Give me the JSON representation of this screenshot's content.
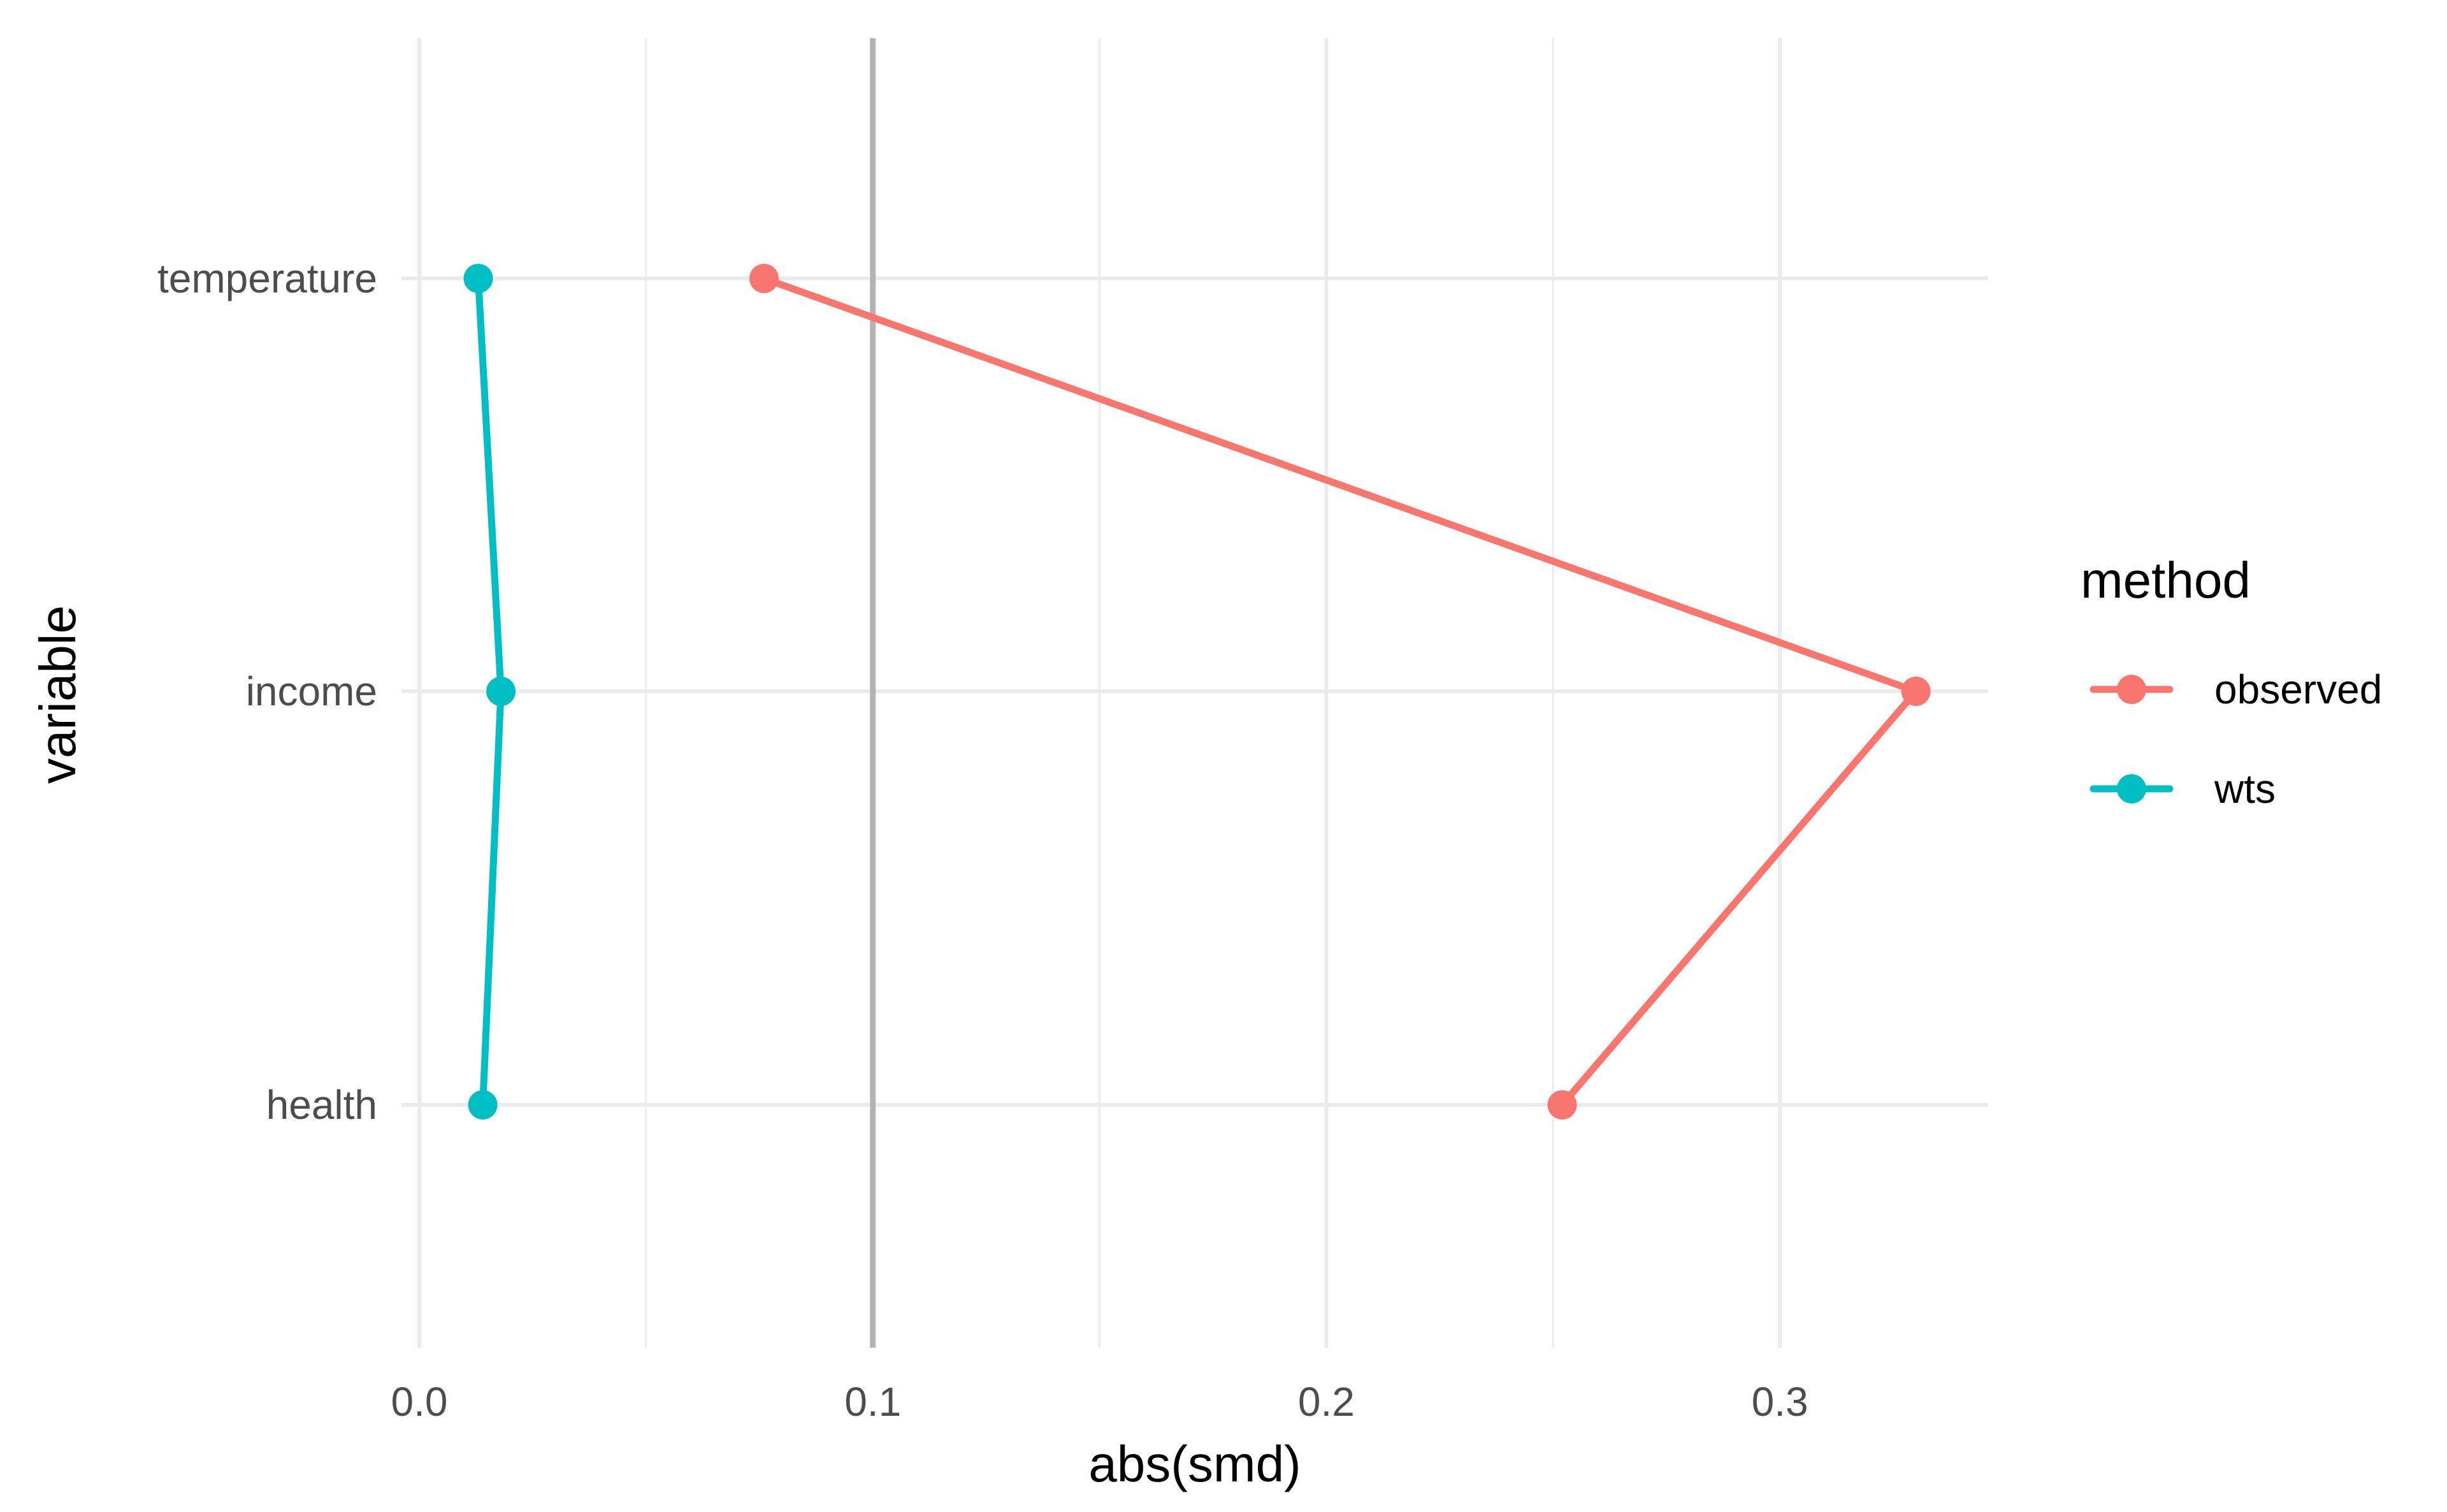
{
  "chart_data": {
    "type": "line",
    "xlabel": "abs(smd)",
    "ylabel": "variable",
    "xlim": [
      -0.0035,
      0.3455
    ],
    "x_ticks": [
      0.0,
      0.1,
      0.2,
      0.3
    ],
    "x_tick_labels": [
      "0.0",
      "0.1",
      "0.2",
      "0.3"
    ],
    "x_minor_ticks": [
      0.05,
      0.15,
      0.25
    ],
    "categories": [
      "temperature",
      "income",
      "health"
    ],
    "reference_line": {
      "x": 0.1,
      "color": "#b3b3b3"
    },
    "legend": {
      "title": "method",
      "placement": "right",
      "entries": [
        "observed",
        "wts"
      ]
    },
    "grid": true,
    "series": [
      {
        "name": "observed",
        "color": "#F8766D",
        "points": [
          {
            "category": "temperature",
            "x": 0.076
          },
          {
            "category": "income",
            "x": 0.33
          },
          {
            "category": "health",
            "x": 0.252
          }
        ]
      },
      {
        "name": "wts",
        "color": "#00BFC4",
        "points": [
          {
            "category": "temperature",
            "x": 0.013
          },
          {
            "category": "income",
            "x": 0.018
          },
          {
            "category": "health",
            "x": 0.014
          }
        ]
      }
    ]
  }
}
